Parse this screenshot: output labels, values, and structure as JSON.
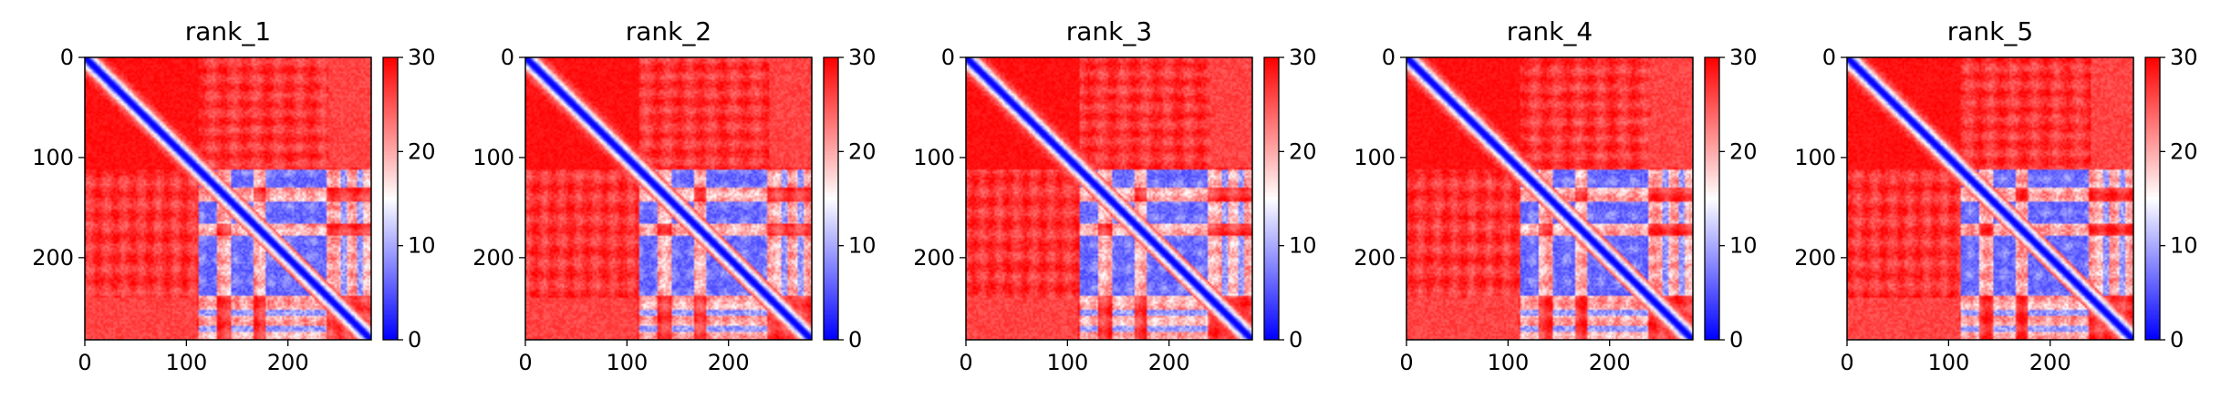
{
  "figure": {
    "panel_count": 5
  },
  "chart_data": [
    {
      "type": "heatmap",
      "title": "rank_1",
      "xlabel": "",
      "ylabel": "",
      "x_ticks": [
        0,
        100,
        200
      ],
      "y_ticks": [
        0,
        100,
        200
      ],
      "xlim": [
        0,
        282
      ],
      "ylim": [
        282,
        0
      ],
      "colorbar": {
        "ticks": [
          0,
          10,
          20,
          30
        ],
        "range": [
          0,
          30
        ],
        "colormap": "bwr",
        "colors": {
          "low": "#0000ff",
          "mid": "#ffffff",
          "high": "#ff0000"
        }
      },
      "structure": {
        "matrix_size": 282,
        "symmetric": true,
        "diagonal_value": 0,
        "domain_start": 112,
        "domain_end": 282,
        "block_bands": [
          [
            112,
            130
          ],
          [
            145,
            165
          ],
          [
            178,
            238
          ]
        ],
        "aux_bands": [
          255,
          271
        ],
        "typical_in_block": 6,
        "typical_background": 30
      }
    },
    {
      "type": "heatmap",
      "title": "rank_2",
      "xlabel": "",
      "ylabel": "",
      "x_ticks": [
        0,
        100,
        200
      ],
      "y_ticks": [
        0,
        100,
        200
      ],
      "xlim": [
        0,
        282
      ],
      "ylim": [
        282,
        0
      ],
      "colorbar": {
        "ticks": [
          0,
          10,
          20,
          30
        ],
        "range": [
          0,
          30
        ],
        "colormap": "bwr",
        "colors": {
          "low": "#0000ff",
          "mid": "#ffffff",
          "high": "#ff0000"
        }
      },
      "structure": {
        "matrix_size": 282,
        "symmetric": true,
        "diagonal_value": 0,
        "domain_start": 112,
        "domain_end": 282,
        "block_bands": [
          [
            112,
            130
          ],
          [
            145,
            165
          ],
          [
            178,
            238
          ]
        ],
        "aux_bands": [
          255,
          271
        ],
        "typical_in_block": 6,
        "typical_background": 30
      }
    },
    {
      "type": "heatmap",
      "title": "rank_3",
      "xlabel": "",
      "ylabel": "",
      "x_ticks": [
        0,
        100,
        200
      ],
      "y_ticks": [
        0,
        100,
        200
      ],
      "xlim": [
        0,
        282
      ],
      "ylim": [
        282,
        0
      ],
      "colorbar": {
        "ticks": [
          0,
          10,
          20,
          30
        ],
        "range": [
          0,
          30
        ],
        "colormap": "bwr",
        "colors": {
          "low": "#0000ff",
          "mid": "#ffffff",
          "high": "#ff0000"
        }
      },
      "structure": {
        "matrix_size": 282,
        "symmetric": true,
        "diagonal_value": 0,
        "domain_start": 112,
        "domain_end": 282,
        "block_bands": [
          [
            112,
            130
          ],
          [
            145,
            165
          ],
          [
            178,
            238
          ]
        ],
        "aux_bands": [
          255,
          271
        ],
        "typical_in_block": 6,
        "typical_background": 30
      }
    },
    {
      "type": "heatmap",
      "title": "rank_4",
      "xlabel": "",
      "ylabel": "",
      "x_ticks": [
        0,
        100,
        200
      ],
      "y_ticks": [
        0,
        100,
        200
      ],
      "xlim": [
        0,
        282
      ],
      "ylim": [
        282,
        0
      ],
      "colorbar": {
        "ticks": [
          0,
          10,
          20,
          30
        ],
        "range": [
          0,
          30
        ],
        "colormap": "bwr",
        "colors": {
          "low": "#0000ff",
          "mid": "#ffffff",
          "high": "#ff0000"
        }
      },
      "structure": {
        "matrix_size": 282,
        "symmetric": true,
        "diagonal_value": 0,
        "domain_start": 112,
        "domain_end": 282,
        "block_bands": [
          [
            112,
            130
          ],
          [
            145,
            165
          ],
          [
            178,
            238
          ]
        ],
        "aux_bands": [
          255,
          271
        ],
        "typical_in_block": 6,
        "typical_background": 30
      }
    },
    {
      "type": "heatmap",
      "title": "rank_5",
      "xlabel": "",
      "ylabel": "",
      "x_ticks": [
        0,
        100,
        200
      ],
      "y_ticks": [
        0,
        100,
        200
      ],
      "xlim": [
        0,
        282
      ],
      "ylim": [
        282,
        0
      ],
      "colorbar": {
        "ticks": [
          0,
          10,
          20,
          30
        ],
        "range": [
          0,
          30
        ],
        "colormap": "bwr",
        "colors": {
          "low": "#0000ff",
          "mid": "#ffffff",
          "high": "#ff0000"
        }
      },
      "structure": {
        "matrix_size": 282,
        "symmetric": true,
        "diagonal_value": 0,
        "domain_start": 112,
        "domain_end": 282,
        "block_bands": [
          [
            112,
            130
          ],
          [
            145,
            165
          ],
          [
            178,
            238
          ]
        ],
        "aux_bands": [
          255,
          271
        ],
        "typical_in_block": 6,
        "typical_background": 30
      }
    }
  ]
}
